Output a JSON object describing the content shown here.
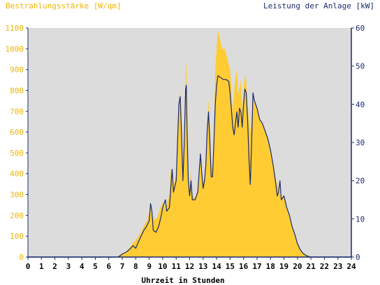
{
  "chart_data": {
    "type": "area",
    "ylabel_left": "Bestrahlungsstärke [W/qm]",
    "ylabel_right": "Leistung der Anlage [kW]",
    "xlabel": "Uhrzeit in Stunden",
    "xlim": [
      0,
      24
    ],
    "ylim_left": [
      0,
      1100
    ],
    "ylim_right": [
      0,
      60
    ],
    "x_ticks": [
      "0",
      "1",
      "2",
      "3",
      "4",
      "5",
      "6",
      "7",
      "8",
      "9",
      "10",
      "11",
      "12",
      "13",
      "14",
      "15",
      "16",
      "17",
      "18",
      "19",
      "20",
      "21",
      "22",
      "23",
      "24"
    ],
    "y_ticks_left": [
      "0",
      "100",
      "200",
      "300",
      "400",
      "500",
      "600",
      "700",
      "800",
      "900",
      "1000",
      "1100"
    ],
    "y_ticks_right": [
      "0",
      "10",
      "20",
      "30",
      "40",
      "50",
      "60"
    ],
    "grid": false,
    "colors": {
      "irradiance_fill": "#FFCC33",
      "power_line": "#1A2A6C",
      "plot_background": "#DCDCDC",
      "axis": "#1A2A6C",
      "left_label_color": "#F0B400",
      "right_label_color": "#1A2A6C"
    },
    "series": [
      {
        "name": "Bestrahlungsstärke [W/qm]",
        "axis": "left",
        "style": "area",
        "points": [
          [
            0,
            0
          ],
          [
            6.5,
            0
          ],
          [
            6.7,
            5
          ],
          [
            7,
            15
          ],
          [
            7.3,
            25
          ],
          [
            7.6,
            50
          ],
          [
            7.8,
            70
          ],
          [
            8.0,
            80
          ],
          [
            8.2,
            100
          ],
          [
            8.4,
            120
          ],
          [
            8.6,
            150
          ],
          [
            8.8,
            170
          ],
          [
            9.0,
            210
          ],
          [
            9.1,
            240
          ],
          [
            9.2,
            200
          ],
          [
            9.4,
            180
          ],
          [
            9.6,
            190
          ],
          [
            9.8,
            230
          ],
          [
            10.0,
            260
          ],
          [
            10.2,
            240
          ],
          [
            10.3,
            250
          ],
          [
            10.5,
            300
          ],
          [
            10.6,
            420
          ],
          [
            10.7,
            360
          ],
          [
            10.8,
            330
          ],
          [
            11.0,
            400
          ],
          [
            11.1,
            600
          ],
          [
            11.2,
            760
          ],
          [
            11.3,
            790
          ],
          [
            11.4,
            620
          ],
          [
            11.5,
            380
          ],
          [
            11.6,
            500
          ],
          [
            11.7,
            880
          ],
          [
            11.75,
            950
          ],
          [
            11.8,
            700
          ],
          [
            11.9,
            400
          ],
          [
            12.0,
            300
          ],
          [
            12.1,
            420
          ],
          [
            12.2,
            300
          ],
          [
            12.4,
            280
          ],
          [
            12.6,
            320
          ],
          [
            12.7,
            400
          ],
          [
            12.8,
            500
          ],
          [
            12.9,
            420
          ],
          [
            13.0,
            360
          ],
          [
            13.1,
            380
          ],
          [
            13.2,
            420
          ],
          [
            13.3,
            600
          ],
          [
            13.4,
            760
          ],
          [
            13.5,
            620
          ],
          [
            13.6,
            450
          ],
          [
            13.7,
            420
          ],
          [
            13.8,
            600
          ],
          [
            13.9,
            900
          ],
          [
            14.0,
            1000
          ],
          [
            14.1,
            1090
          ],
          [
            14.2,
            1060
          ],
          [
            14.4,
            1000
          ],
          [
            14.6,
            1000
          ],
          [
            14.8,
            950
          ],
          [
            15.0,
            900
          ],
          [
            15.2,
            700
          ],
          [
            15.3,
            800
          ],
          [
            15.4,
            860
          ],
          [
            15.5,
            900
          ],
          [
            15.6,
            780
          ],
          [
            15.8,
            850
          ],
          [
            15.9,
            700
          ],
          [
            16.0,
            800
          ],
          [
            16.1,
            870
          ],
          [
            16.2,
            850
          ],
          [
            16.3,
            720
          ],
          [
            16.4,
            650
          ],
          [
            16.5,
            600
          ],
          [
            16.7,
            760
          ],
          [
            16.8,
            740
          ],
          [
            17.0,
            720
          ],
          [
            17.2,
            660
          ],
          [
            17.4,
            640
          ],
          [
            17.6,
            610
          ],
          [
            17.8,
            560
          ],
          [
            18.0,
            500
          ],
          [
            18.2,
            450
          ],
          [
            18.4,
            370
          ],
          [
            18.6,
            330
          ],
          [
            18.8,
            280
          ],
          [
            19.0,
            300
          ],
          [
            19.2,
            240
          ],
          [
            19.4,
            190
          ],
          [
            19.6,
            150
          ],
          [
            19.8,
            110
          ],
          [
            20.0,
            70
          ],
          [
            20.2,
            40
          ],
          [
            20.4,
            20
          ],
          [
            20.6,
            10
          ],
          [
            20.9,
            3
          ],
          [
            21.0,
            0
          ],
          [
            24,
            0
          ]
        ]
      },
      {
        "name": "Leistung der Anlage [kW]",
        "axis": "right",
        "style": "line",
        "points": [
          [
            0,
            0
          ],
          [
            6.7,
            0
          ],
          [
            7.0,
            0.8
          ],
          [
            7.3,
            1.3
          ],
          [
            7.6,
            2.2
          ],
          [
            7.8,
            3
          ],
          [
            8.0,
            2.3
          ],
          [
            8.2,
            4
          ],
          [
            8.4,
            5.5
          ],
          [
            8.6,
            7
          ],
          [
            8.8,
            8
          ],
          [
            9.0,
            9.5
          ],
          [
            9.1,
            14
          ],
          [
            9.2,
            12
          ],
          [
            9.3,
            7
          ],
          [
            9.5,
            6.5
          ],
          [
            9.7,
            8
          ],
          [
            9.9,
            11
          ],
          [
            10.0,
            13
          ],
          [
            10.2,
            15
          ],
          [
            10.3,
            12
          ],
          [
            10.5,
            13
          ],
          [
            10.6,
            18
          ],
          [
            10.7,
            23
          ],
          [
            10.8,
            17
          ],
          [
            11.0,
            20
          ],
          [
            11.1,
            30
          ],
          [
            11.2,
            40
          ],
          [
            11.3,
            42
          ],
          [
            11.4,
            32
          ],
          [
            11.5,
            20
          ],
          [
            11.6,
            30
          ],
          [
            11.7,
            44
          ],
          [
            11.75,
            45
          ],
          [
            11.8,
            35
          ],
          [
            11.9,
            20
          ],
          [
            12.0,
            16
          ],
          [
            12.1,
            20
          ],
          [
            12.2,
            15
          ],
          [
            12.4,
            15
          ],
          [
            12.6,
            17
          ],
          [
            12.7,
            22
          ],
          [
            12.8,
            27
          ],
          [
            12.9,
            22
          ],
          [
            13.0,
            18
          ],
          [
            13.1,
            20
          ],
          [
            13.2,
            24
          ],
          [
            13.3,
            33
          ],
          [
            13.4,
            38
          ],
          [
            13.5,
            30
          ],
          [
            13.6,
            21
          ],
          [
            13.7,
            21
          ],
          [
            13.8,
            30
          ],
          [
            13.9,
            40
          ],
          [
            14.0,
            45
          ],
          [
            14.1,
            47.5
          ],
          [
            14.3,
            47
          ],
          [
            14.5,
            46.5
          ],
          [
            14.7,
            46.5
          ],
          [
            14.9,
            46
          ],
          [
            15.0,
            43
          ],
          [
            15.2,
            34
          ],
          [
            15.3,
            32
          ],
          [
            15.5,
            38
          ],
          [
            15.6,
            34
          ],
          [
            15.7,
            39
          ],
          [
            15.8,
            38
          ],
          [
            15.9,
            34
          ],
          [
            16.0,
            40
          ],
          [
            16.1,
            44
          ],
          [
            16.2,
            43
          ],
          [
            16.3,
            36
          ],
          [
            16.4,
            26
          ],
          [
            16.5,
            19
          ],
          [
            16.6,
            30
          ],
          [
            16.7,
            43
          ],
          [
            16.8,
            41
          ],
          [
            17.0,
            39
          ],
          [
            17.2,
            36
          ],
          [
            17.4,
            35
          ],
          [
            17.6,
            33
          ],
          [
            17.8,
            31
          ],
          [
            18.0,
            28
          ],
          [
            18.2,
            24
          ],
          [
            18.4,
            19
          ],
          [
            18.5,
            16
          ],
          [
            18.6,
            17
          ],
          [
            18.7,
            20
          ],
          [
            18.8,
            15
          ],
          [
            19.0,
            16
          ],
          [
            19.2,
            13
          ],
          [
            19.4,
            11
          ],
          [
            19.6,
            8
          ],
          [
            19.8,
            6
          ],
          [
            20.0,
            3.5
          ],
          [
            20.2,
            2
          ],
          [
            20.4,
            1
          ],
          [
            20.6,
            0.5
          ],
          [
            20.8,
            0.2
          ],
          [
            21.0,
            0
          ],
          [
            24,
            0
          ]
        ]
      }
    ]
  }
}
